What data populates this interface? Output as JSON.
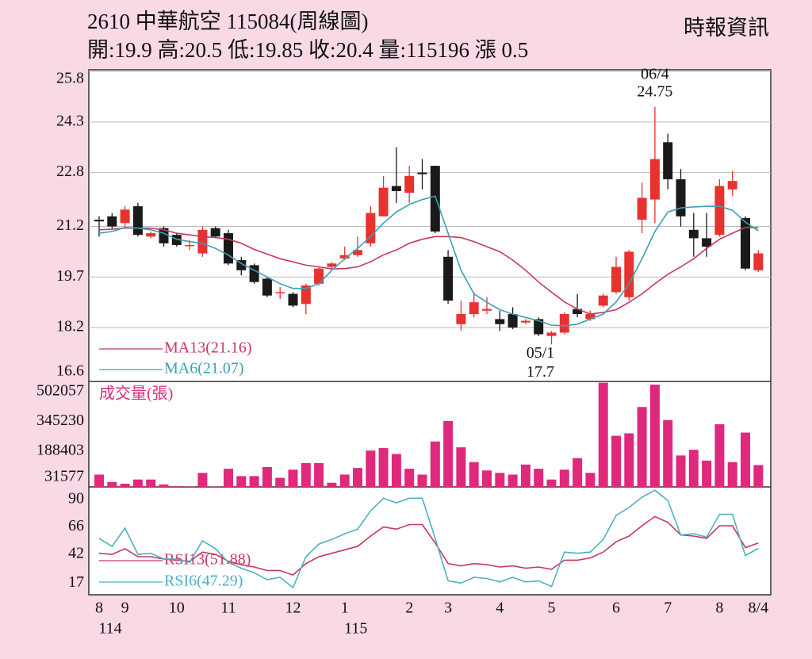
{
  "header": {
    "title": "2610  中華航空 115084(周線圖)",
    "info": "開:19.9 高:20.5 低:19.85 收:20.4 量:115196 漲 0.5",
    "source": "時報資訊"
  },
  "chart_data": [
    {
      "type": "candlestick",
      "categories": [
        "8",
        null,
        "9",
        null,
        null,
        null,
        "10",
        null,
        null,
        null,
        "11",
        null,
        null,
        null,
        null,
        "12",
        null,
        null,
        null,
        "1",
        null,
        null,
        null,
        null,
        "2",
        null,
        null,
        "3",
        null,
        null,
        null,
        "4",
        null,
        null,
        null,
        "5",
        null,
        null,
        null,
        null,
        "6",
        null,
        null,
        null,
        "7",
        null,
        null,
        null,
        "8",
        null,
        null,
        "8/4"
      ],
      "years": [
        "114",
        null,
        null,
        null,
        null,
        null,
        null,
        null,
        null,
        null,
        null,
        null,
        null,
        null,
        null,
        null,
        null,
        null,
        null,
        "115",
        null,
        null,
        null,
        null,
        null,
        null,
        null,
        null,
        null,
        null,
        null,
        null,
        null,
        null,
        null,
        null,
        null,
        null,
        null,
        null,
        null,
        null,
        null,
        null,
        null,
        null,
        null,
        null,
        null,
        null,
        null,
        null
      ],
      "open": [
        21.4,
        21.5,
        21.3,
        21.8,
        20.9,
        21.15,
        20.95,
        20.65,
        20.4,
        21.15,
        21.0,
        20.2,
        20.05,
        19.65,
        19.25,
        19.2,
        18.9,
        19.5,
        20.0,
        20.25,
        20.35,
        20.7,
        21.5,
        22.4,
        22.2,
        22.8,
        23.0,
        20.3,
        18.3,
        18.6,
        18.7,
        18.45,
        18.6,
        18.35,
        18.45,
        17.95,
        18.05,
        18.75,
        18.45,
        18.85,
        19.25,
        19.1,
        21.4,
        22.0,
        23.7,
        22.6,
        21.1,
        20.85,
        20.95,
        22.3,
        21.45,
        19.9
      ],
      "high": [
        21.5,
        21.6,
        21.8,
        21.9,
        21.05,
        21.2,
        21.0,
        20.8,
        21.2,
        21.2,
        21.1,
        20.3,
        20.1,
        19.7,
        19.4,
        19.25,
        19.5,
        20.0,
        20.15,
        20.6,
        20.9,
        21.8,
        22.7,
        23.55,
        23.0,
        23.2,
        23.0,
        20.5,
        19.0,
        19.25,
        19.1,
        18.7,
        18.8,
        18.45,
        18.5,
        18.1,
        18.65,
        19.2,
        18.7,
        19.2,
        20.3,
        20.5,
        22.5,
        24.75,
        23.95,
        22.9,
        21.6,
        21.6,
        22.6,
        22.85,
        21.5,
        20.5
      ],
      "low": [
        20.9,
        21.1,
        21.2,
        20.9,
        20.85,
        20.6,
        20.6,
        20.5,
        20.3,
        20.85,
        20.05,
        19.75,
        19.5,
        19.1,
        19.05,
        18.8,
        18.6,
        19.45,
        19.95,
        20.2,
        20.3,
        20.6,
        21.5,
        21.9,
        21.9,
        22.3,
        21.0,
        18.9,
        18.1,
        18.5,
        18.6,
        18.1,
        18.15,
        18.3,
        17.95,
        17.7,
        18.0,
        18.5,
        18.4,
        18.8,
        19.2,
        19.0,
        21.0,
        21.3,
        22.3,
        21.2,
        20.3,
        20.3,
        20.9,
        22.1,
        19.9,
        19.85
      ],
      "close": [
        21.35,
        21.2,
        21.7,
        20.95,
        21.0,
        20.7,
        20.65,
        20.65,
        21.1,
        20.9,
        20.1,
        19.9,
        19.55,
        19.15,
        19.25,
        18.85,
        19.45,
        19.95,
        20.1,
        20.35,
        20.5,
        21.6,
        22.35,
        22.25,
        22.7,
        22.75,
        21.05,
        19.0,
        18.6,
        18.95,
        18.75,
        18.3,
        18.2,
        18.4,
        18.0,
        18.05,
        18.6,
        18.6,
        18.6,
        19.15,
        20.0,
        20.45,
        22.05,
        23.2,
        22.6,
        21.5,
        20.85,
        20.6,
        22.4,
        22.55,
        19.95,
        20.4
      ],
      "up_color": "#e8322f",
      "down_color": "#1a1a1a",
      "series": [
        {
          "name": "MA13(21.16)",
          "color": "#c8375e",
          "values": [
            21.1,
            21.12,
            21.15,
            21.15,
            21.15,
            21.1,
            21.0,
            20.95,
            20.9,
            20.87,
            20.82,
            20.7,
            20.52,
            20.38,
            20.24,
            20.15,
            20.05,
            20.0,
            19.94,
            19.95,
            20.0,
            20.15,
            20.36,
            20.5,
            20.7,
            20.82,
            20.9,
            20.9,
            20.87,
            20.75,
            20.6,
            20.45,
            20.2,
            19.9,
            19.55,
            19.25,
            18.96,
            18.75,
            18.6,
            18.65,
            18.73,
            18.95,
            19.2,
            19.5,
            19.78,
            20.0,
            20.24,
            20.55,
            20.82,
            21.0,
            21.17,
            21.16
          ]
        },
        {
          "name": "MA6(21.07)",
          "color": "#3a9fb6",
          "values": [
            21.0,
            21.05,
            21.17,
            21.15,
            21.1,
            21.0,
            20.82,
            20.75,
            20.7,
            20.55,
            20.35,
            20.1,
            19.9,
            19.7,
            19.5,
            19.36,
            19.36,
            19.5,
            19.9,
            20.24,
            20.55,
            20.9,
            21.3,
            21.63,
            21.85,
            22.0,
            22.1,
            21.0,
            19.9,
            19.2,
            18.95,
            18.73,
            18.6,
            18.5,
            18.4,
            18.27,
            18.25,
            18.3,
            18.45,
            18.6,
            18.96,
            19.5,
            20.24,
            21.05,
            21.63,
            21.75,
            21.78,
            21.8,
            21.8,
            21.68,
            21.33,
            21.07
          ]
        }
      ],
      "annotations": [
        {
          "date": "06/4",
          "value": 24.75
        },
        {
          "date": "05/1",
          "value": 17.7
        }
      ],
      "ylim": [
        16.6,
        25.85
      ],
      "yticks": [
        25.8,
        24.3,
        22.8,
        21.2,
        19.7,
        18.2,
        16.6
      ],
      "grid": true
    },
    {
      "type": "bar",
      "title": "成交量(張)",
      "color": "#e0287d",
      "values": [
        65000,
        26000,
        17000,
        39000,
        39000,
        13000,
        3000,
        2000,
        74000,
        2000,
        96000,
        57000,
        57000,
        105000,
        48000,
        91000,
        126000,
        126000,
        22000,
        65000,
        100000,
        192000,
        205000,
        174000,
        96000,
        65000,
        240000,
        348000,
        209000,
        131000,
        87000,
        74000,
        65000,
        118000,
        96000,
        39000,
        91000,
        152000,
        74000,
        550000,
        270000,
        283000,
        422000,
        540000,
        353000,
        166000,
        196000,
        139000,
        331000,
        131000,
        287000,
        115196
      ],
      "ylim": [
        0,
        557000
      ],
      "yticks": [
        502057,
        345230,
        188403,
        31577
      ],
      "grid": false
    },
    {
      "type": "line",
      "series": [
        {
          "name": "RSI13(51.88)",
          "color": "#c8375e",
          "values": [
            43,
            42,
            47,
            40,
            40,
            38,
            37,
            36,
            44,
            42,
            36,
            33,
            31,
            28,
            28,
            24,
            34,
            40,
            43,
            46,
            49,
            58,
            66,
            64,
            68,
            68,
            52,
            34,
            32,
            34,
            33,
            31,
            32,
            30,
            31,
            29,
            37,
            37,
            39,
            44,
            53,
            58,
            67,
            75,
            70,
            59,
            58,
            56,
            67,
            67,
            48,
            51.88
          ]
        },
        {
          "name": "RSI6(47.29)",
          "color": "#4fb0c2",
          "values": [
            56,
            49,
            65,
            42,
            43,
            38,
            38,
            35,
            54,
            47,
            35,
            30,
            26,
            20,
            22,
            13,
            40,
            51,
            55,
            60,
            64,
            80,
            91,
            87,
            91,
            91,
            56,
            19,
            17,
            22,
            21,
            18,
            22,
            18,
            19,
            14,
            44,
            43,
            44,
            55,
            76,
            83,
            92,
            98,
            89,
            59,
            60,
            57,
            77,
            77,
            41,
            47.29
          ]
        }
      ],
      "ylim": [
        6.8,
        100.9
      ],
      "yticks": [
        90,
        66,
        42,
        17
      ],
      "grid": false
    }
  ]
}
